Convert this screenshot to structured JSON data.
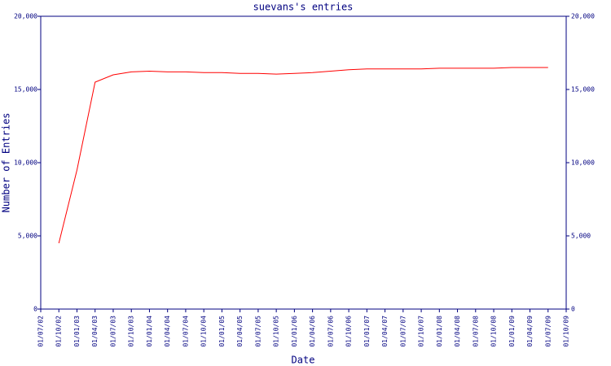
{
  "chart_data": {
    "type": "line",
    "title": "suevans's entries",
    "x_label": "Date",
    "y_label": "Number of Entries",
    "x": [
      "01/07/02",
      "01/10/02",
      "01/01/03",
      "01/04/03",
      "01/07/03",
      "01/10/03",
      "01/01/04",
      "01/04/04",
      "01/07/04",
      "01/10/04",
      "01/01/05",
      "01/04/05",
      "01/07/05",
      "01/10/05",
      "01/01/06",
      "01/04/06",
      "01/07/06",
      "01/10/06",
      "01/01/07",
      "01/04/07",
      "01/07/07",
      "01/10/07",
      "01/01/08",
      "01/04/08",
      "01/07/08",
      "01/10/08",
      "01/01/09",
      "01/04/09",
      "01/07/09",
      "01/10/09"
    ],
    "series": [
      {
        "name": "suevans",
        "color": "#ff0000",
        "values": [
          null,
          4500,
          9500,
          15500,
          16000,
          16200,
          16250,
          16200,
          16200,
          16150,
          16150,
          16100,
          16100,
          16050,
          16100,
          16150,
          16250,
          16350,
          16400,
          16400,
          16400,
          16400,
          16450,
          16450,
          16450,
          16450,
          16500,
          16500,
          16500,
          null
        ]
      }
    ],
    "ylim": [
      0,
      20000
    ],
    "yticks": [
      0,
      {
        "value": 5000,
        "label": "5,000"
      },
      {
        "value": 10000,
        "label": "10,000"
      },
      {
        "value": 15000,
        "label": "15,000"
      },
      {
        "value": 20000,
        "label": "20,000"
      }
    ],
    "y2lim": [
      0,
      20000
    ],
    "y2ticks": [
      0,
      {
        "value": 5000,
        "label": "5,000"
      },
      {
        "value": 10000,
        "label": "10,000"
      },
      {
        "value": 15000,
        "label": "15,000"
      },
      {
        "value": 20000,
        "label": "20,000"
      }
    ],
    "axis_color": "#000080",
    "grid": false
  }
}
